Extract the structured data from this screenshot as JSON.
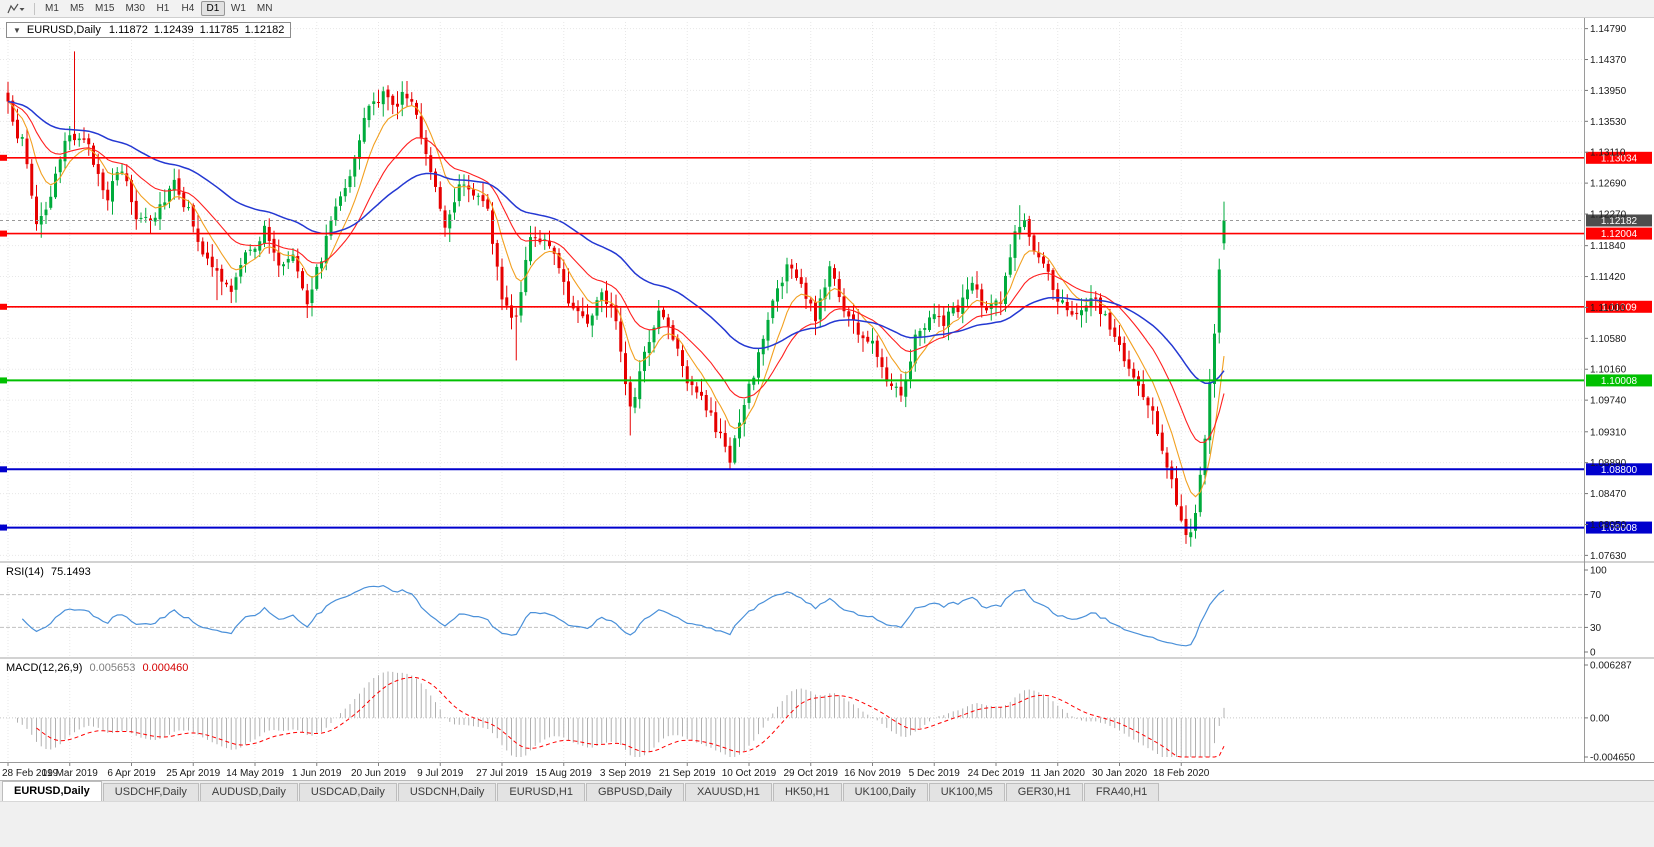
{
  "icons": {
    "one_click_arrow": "▼"
  },
  "toolbar": {
    "timeframes": [
      "M1",
      "M5",
      "M15",
      "M30",
      "H1",
      "H4",
      "D1",
      "W1",
      "MN"
    ],
    "active": "D1"
  },
  "quote": {
    "symbol": "EURUSD,Daily",
    "open": "1.11872",
    "high": "1.12439",
    "low": "1.11785",
    "close": "1.12182"
  },
  "main_chart": {
    "y_axis_labels": [
      "1.14790",
      "1.14370",
      "1.13950",
      "1.13530",
      "1.13110",
      "1.12690",
      "1.12270",
      "1.11840",
      "1.11420",
      "1.11000",
      "1.10580",
      "1.10160",
      "1.09740",
      "1.09310",
      "1.08890",
      "1.08470",
      "1.08050",
      "1.07630"
    ],
    "levels": [
      {
        "price": 1.13034,
        "label": "1.13034",
        "color": "red"
      },
      {
        "price": 1.12004,
        "label": "1.12004",
        "color": "red"
      },
      {
        "price": 1.11009,
        "label": "1.11009",
        "color": "red"
      },
      {
        "price": 1.10008,
        "label": "1.10008",
        "color": "green"
      },
      {
        "price": 1.088,
        "label": "1.08800",
        "color": "blue"
      },
      {
        "price": 1.08008,
        "label": "1.08008",
        "color": "blue"
      }
    ],
    "current_price": {
      "value": 1.12182,
      "label": "1.12182"
    }
  },
  "rsi": {
    "name": "RSI(14)",
    "value": "75.1493",
    "axis_labels": [
      {
        "text": "100",
        "value": 100
      },
      {
        "text": "70",
        "value": 70
      },
      {
        "text": "30",
        "value": 30
      },
      {
        "text": "0",
        "value": 0
      }
    ],
    "upper_level": 70,
    "lower_level": 30
  },
  "macd": {
    "name": "MACD(12,26,9)",
    "main_value": "0.005653",
    "signal_value": "0.000460",
    "axis_labels": [
      {
        "text": "0.006287",
        "value": 0.006287
      },
      {
        "text": "0.00",
        "value": 0
      },
      {
        "text": "-0.004650",
        "value": -0.00465
      }
    ],
    "max": 0.006287,
    "min": -0.00465
  },
  "x_axis": {
    "labels": [
      {
        "text": "28 Feb 2019",
        "bar": 0
      },
      {
        "text": "19 Mar 2019",
        "bar": 13
      },
      {
        "text": "6 Apr 2019",
        "bar": 26
      },
      {
        "text": "25 Apr 2019",
        "bar": 39
      },
      {
        "text": "14 May 2019",
        "bar": 52
      },
      {
        "text": "1 Jun 2019",
        "bar": 65
      },
      {
        "text": "20 Jun 2019",
        "bar": 78
      },
      {
        "text": "9 Jul 2019",
        "bar": 91
      },
      {
        "text": "27 Jul 2019",
        "bar": 104
      },
      {
        "text": "15 Aug 2019",
        "bar": 117
      },
      {
        "text": "3 Sep 2019",
        "bar": 130
      },
      {
        "text": "21 Sep 2019",
        "bar": 143
      },
      {
        "text": "10 Oct 2019",
        "bar": 156
      },
      {
        "text": "29 Oct 2019",
        "bar": 169
      },
      {
        "text": "16 Nov 2019",
        "bar": 182
      },
      {
        "text": "5 Dec 2019",
        "bar": 195
      },
      {
        "text": "24 Dec 2019",
        "bar": 208
      },
      {
        "text": "11 Jan 2020",
        "bar": 221
      },
      {
        "text": "30 Jan 2020",
        "bar": 234
      },
      {
        "text": "18 Feb 2020",
        "bar": 247
      }
    ]
  },
  "tabs": [
    "EURUSD,Daily",
    "USDCHF,Daily",
    "AUDUSD,Daily",
    "USDCAD,Daily",
    "USDCNH,Daily",
    "EURUSD,H1",
    "GBPUSD,Daily",
    "XAUUSD,H1",
    "HK50,H1",
    "UK100,Daily",
    "UK100,M5",
    "GER30,H1",
    "FRA40,H1"
  ],
  "active_tab": "EURUSD,Daily",
  "colors": {
    "up": "#00ab3c",
    "down": "#e60000",
    "level_red": "#ff0000",
    "level_green": "#00c000",
    "level_blue": "#0000cd",
    "price_box": "#4d4d4d",
    "rsi": "#4a90d9",
    "macd_hist": "#b0b0b0",
    "macd_signal": "#ff0000",
    "grid": "#e7e7e7"
  },
  "chart_data": {
    "type": "candlestick",
    "symbol": "EURUSD",
    "timeframe": "Daily",
    "bars": 257,
    "price_range": [
      1.0754,
      1.1488
    ],
    "close_anchors": [
      [
        0,
        1.137
      ],
      [
        3,
        1.1328
      ],
      [
        6,
        1.1215
      ],
      [
        9,
        1.1252
      ],
      [
        13,
        1.1332
      ],
      [
        15,
        1.134
      ],
      [
        18,
        1.1295
      ],
      [
        21,
        1.1258
      ],
      [
        24,
        1.1285
      ],
      [
        27,
        1.1222
      ],
      [
        31,
        1.1232
      ],
      [
        35,
        1.1278
      ],
      [
        39,
        1.1218
      ],
      [
        43,
        1.1148
      ],
      [
        47,
        1.1122
      ],
      [
        51,
        1.118
      ],
      [
        54,
        1.1208
      ],
      [
        57,
        1.1152
      ],
      [
        60,
        1.1178
      ],
      [
        63,
        1.1118
      ],
      [
        66,
        1.1172
      ],
      [
        70,
        1.1262
      ],
      [
        73,
        1.1305
      ],
      [
        76,
        1.1372
      ],
      [
        79,
        1.1388
      ],
      [
        81,
        1.1368
      ],
      [
        83,
        1.1392
      ],
      [
        86,
        1.136
      ],
      [
        89,
        1.1295
      ],
      [
        92,
        1.1215
      ],
      [
        95,
        1.1278
      ],
      [
        98,
        1.1266
      ],
      [
        101,
        1.1222
      ],
      [
        104,
        1.112
      ],
      [
        107,
        1.1082
      ],
      [
        110,
        1.1205
      ],
      [
        113,
        1.1195
      ],
      [
        116,
        1.1142
      ],
      [
        119,
        1.1098
      ],
      [
        122,
        1.1088
      ],
      [
        125,
        1.1122
      ],
      [
        128,
        1.1085
      ],
      [
        131,
        1.0972
      ],
      [
        134,
        1.1032
      ],
      [
        137,
        1.1098
      ],
      [
        140,
        1.1068
      ],
      [
        143,
        1.1012
      ],
      [
        146,
        1.0988
      ],
      [
        149,
        1.0932
      ],
      [
        152,
        1.0898
      ],
      [
        155,
        1.0962
      ],
      [
        158,
        1.1032
      ],
      [
        161,
        1.1108
      ],
      [
        164,
        1.1158
      ],
      [
        167,
        1.1128
      ],
      [
        170,
        1.1082
      ],
      [
        173,
        1.1158
      ],
      [
        176,
        1.1102
      ],
      [
        179,
        1.1068
      ],
      [
        182,
        1.1048
      ],
      [
        185,
        1.1012
      ],
      [
        188,
        1.0992
      ],
      [
        191,
        1.1062
      ],
      [
        194,
        1.1092
      ],
      [
        197,
        1.1082
      ],
      [
        200,
        1.1102
      ],
      [
        203,
        1.1128
      ],
      [
        206,
        1.1088
      ],
      [
        209,
        1.1112
      ],
      [
        212,
        1.1202
      ],
      [
        214,
        1.1212
      ],
      [
        217,
        1.1162
      ],
      [
        220,
        1.1118
      ],
      [
        223,
        1.1108
      ],
      [
        226,
        1.1092
      ],
      [
        229,
        1.1102
      ],
      [
        232,
        1.1072
      ],
      [
        235,
        1.1028
      ],
      [
        238,
        1.0988
      ],
      [
        241,
        1.0948
      ],
      [
        244,
        1.0892
      ],
      [
        247,
        1.0812
      ],
      [
        249,
        1.0788
      ],
      [
        250,
        1.0812
      ],
      [
        251,
        1.0858
      ],
      [
        252,
        1.0922
      ],
      [
        253,
        1.0992
      ],
      [
        254,
        1.1072
      ],
      [
        255,
        1.1145
      ],
      [
        256,
        1.1218
      ]
    ],
    "wick_overrides": [
      {
        "bar": 14,
        "high": 1.1448
      },
      {
        "bar": 44,
        "low": 1.111
      },
      {
        "bar": 107,
        "low": 1.1028
      },
      {
        "bar": 131,
        "low": 1.0926
      },
      {
        "bar": 152,
        "low": 1.0879
      },
      {
        "bar": 188,
        "low": 1.0981
      },
      {
        "bar": 213,
        "high": 1.1239
      },
      {
        "bar": 249,
        "low": 1.0778
      }
    ],
    "last_bar": {
      "open": 1.11872,
      "high": 1.12439,
      "low": 1.11785,
      "close": 1.12182
    },
    "moving_averages": [
      {
        "period": 8,
        "color": "#f2a020"
      },
      {
        "period": 20,
        "color": "#ff2020"
      },
      {
        "period": 50,
        "color": "#2438d2"
      }
    ],
    "indicators": [
      {
        "name": "RSI",
        "period": 14,
        "current": 75.1493
      },
      {
        "name": "MACD",
        "fast": 12,
        "slow": 26,
        "signal": 9,
        "current_main": 0.005653,
        "current_signal": 0.00046
      }
    ]
  }
}
